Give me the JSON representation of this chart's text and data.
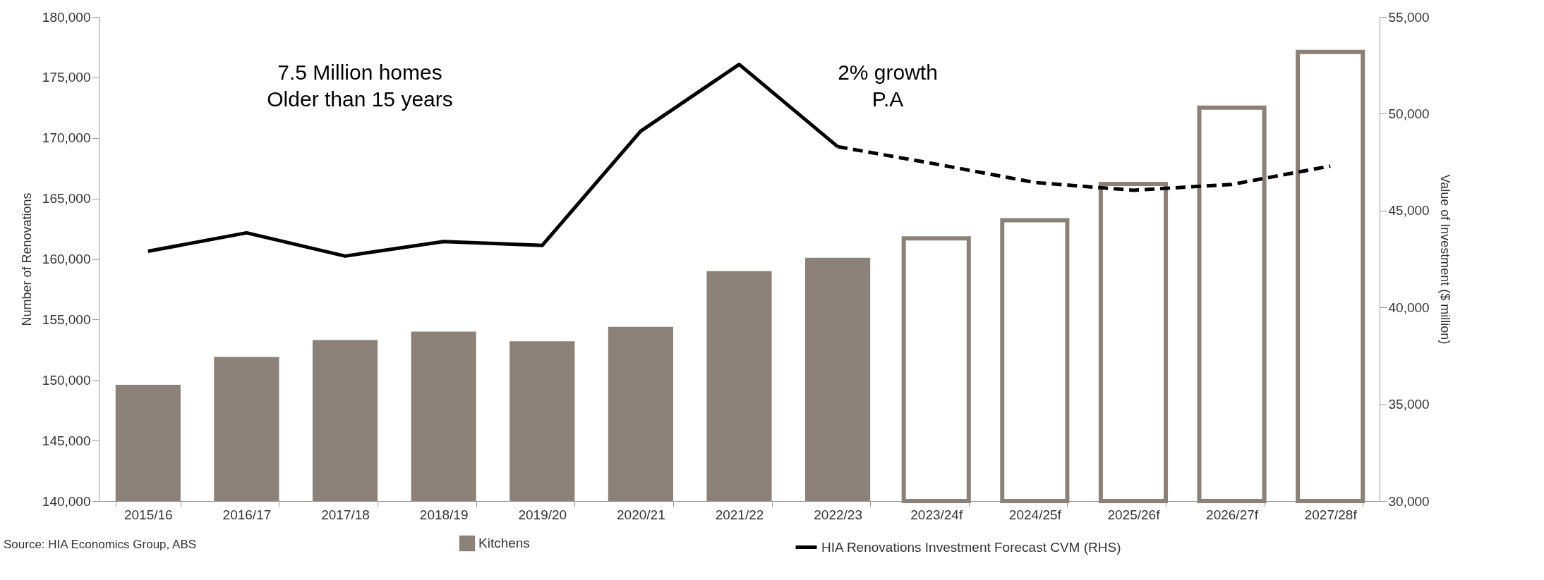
{
  "chart_data": {
    "type": "bar",
    "categories": [
      "2015/16",
      "2016/17",
      "2017/18",
      "2018/19",
      "2019/20",
      "2020/21",
      "2021/22",
      "2022/23",
      "2023/24f",
      "2024/25f",
      "2025/26f",
      "2026/27f",
      "2027/28f"
    ],
    "series": [
      {
        "name": "Kitchens",
        "color": "#8b8178",
        "values": [
          149600,
          151900,
          153300,
          154000,
          153200,
          154400,
          159000,
          160100,
          null,
          null,
          null,
          null,
          null
        ]
      },
      {
        "color": "#8b8178",
        "values": [
          null,
          null,
          null,
          null,
          null,
          null,
          null,
          null,
          161700,
          163200,
          166200,
          172500,
          177100
        ]
      },
      {
        "name": "HIA Renovations Investment Forecast CVM (RHS)",
        "type": "line",
        "axis": "y2",
        "color": "#000000",
        "line_style": "solid",
        "values": [
          42900,
          43850,
          42650,
          43400,
          43200,
          49100,
          52550,
          48300,
          null,
          null,
          null,
          null,
          null
        ]
      },
      {
        "type": "line",
        "axis": "y2",
        "color": "#000000",
        "line_style": "dashed",
        "values": [
          null,
          null,
          null,
          null,
          null,
          null,
          null,
          48300,
          47400,
          46450,
          46050,
          46350,
          47300
        ]
      }
    ],
    "ylabel": "Number of Renovations",
    "y2label": "Value of Investment ($ million)",
    "ylim": [
      140000,
      180000
    ],
    "yticks": [
      {
        "value": 140000,
        "label": "140,000"
      },
      {
        "value": 145000,
        "label": "145,000"
      },
      {
        "value": 150000,
        "label": "150,000"
      },
      {
        "value": 155000,
        "label": "155,000"
      },
      {
        "value": 160000,
        "label": "160,000"
      },
      {
        "value": 165000,
        "label": "165,000"
      },
      {
        "value": 170000,
        "label": "170,000"
      },
      {
        "value": 175000,
        "label": "175,000"
      },
      {
        "value": 180000,
        "label": "180,000"
      }
    ],
    "y2lim": [
      30000,
      55000
    ],
    "y2ticks": [
      {
        "value": 30000,
        "label": "30,000"
      },
      {
        "value": 35000,
        "label": "35,000"
      },
      {
        "value": 40000,
        "label": "40,000"
      },
      {
        "value": 45000,
        "label": "45,000"
      },
      {
        "value": 50000,
        "label": "50,000"
      },
      {
        "value": 55000,
        "label": "55,000"
      }
    ],
    "annotations": [
      "7.5 Million homes\nOlder than 15 years",
      "2% growth\nP.A",
      "Source: HIA Economics Group, ABS"
    ],
    "legend": "bottom",
    "grid": false
  }
}
